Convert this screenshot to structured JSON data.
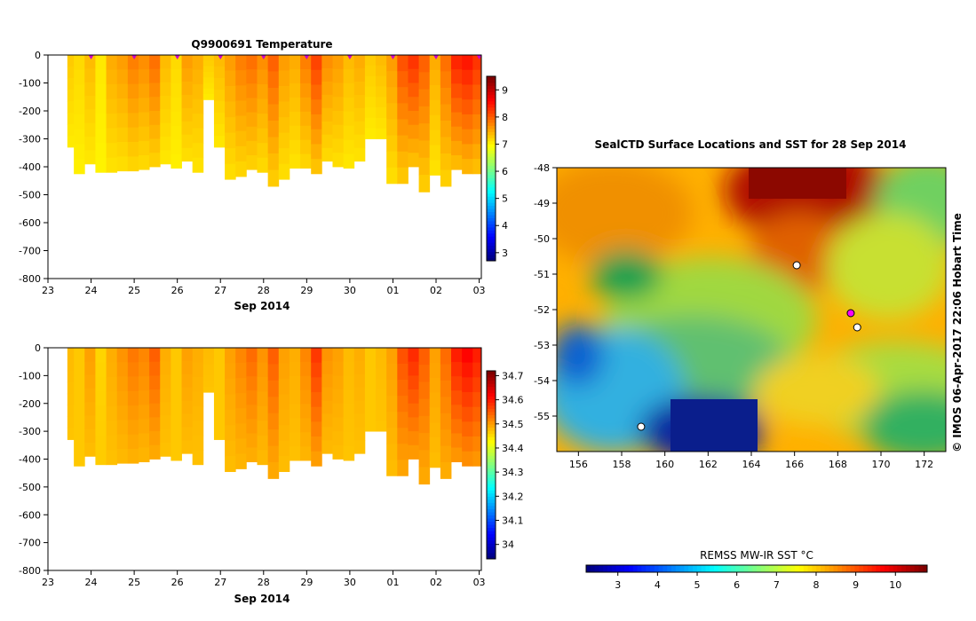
{
  "chart_data": [
    {
      "type": "heatmap",
      "title": "Q9900691  Temperature",
      "xlabel": "Sep 2014",
      "ylabel": "",
      "x_tick_labels": [
        "23",
        "24",
        "25",
        "26",
        "27",
        "28",
        "29",
        "30",
        "01",
        "02",
        "03"
      ],
      "xlim": [
        23,
        33.05
      ],
      "y_tick_labels": [
        "0",
        "-100",
        "-200",
        "-300",
        "-400",
        "-500",
        "-600",
        "-700",
        "-800"
      ],
      "y_ticks": [
        0,
        -100,
        -200,
        -300,
        -400,
        -500,
        -600,
        -700,
        -800
      ],
      "ylim": [
        -800,
        0
      ],
      "colorbar_ticks": [
        3,
        4,
        5,
        6,
        7,
        8,
        9
      ],
      "colorbar_range": [
        2.7,
        9.5
      ],
      "profile_start_times": [
        23.45,
        23.6,
        23.85,
        24.1,
        24.35,
        24.6,
        24.85,
        25.1,
        25.35,
        25.6,
        25.85,
        26.1,
        26.35,
        26.6,
        26.85,
        27.1,
        27.35,
        27.6,
        27.85,
        28.1,
        28.35,
        28.6,
        28.85,
        29.1,
        29.35,
        29.6,
        29.85,
        30.1,
        30.35,
        30.6,
        30.85,
        31.1,
        31.35,
        31.6,
        31.85,
        32.1,
        32.35,
        32.6,
        32.85
      ],
      "profile_max_depth": [
        -330,
        -425,
        -390,
        -420,
        -420,
        -415,
        -415,
        -410,
        -400,
        -390,
        -405,
        -380,
        -420,
        -160,
        -330,
        -445,
        -435,
        -410,
        -420,
        -470,
        -445,
        -405,
        -405,
        -425,
        -380,
        -400,
        -405,
        -380,
        -300,
        -300,
        -460,
        -460,
        -400,
        -490,
        -430,
        -470,
        -410,
        -425,
        -425
      ],
      "profile_surface_values": [
        7.3,
        7.2,
        7.4,
        7.1,
        7.5,
        7.6,
        7.8,
        7.7,
        7.9,
        7.4,
        7.2,
        7.6,
        7.5,
        7.3,
        7.4,
        7.6,
        7.8,
        7.9,
        7.7,
        8.0,
        7.6,
        7.5,
        7.8,
        8.2,
        7.7,
        7.6,
        7.4,
        7.5,
        7.3,
        7.4,
        7.6,
        8.1,
        8.3,
        8.0,
        7.5,
        7.9,
        8.4,
        8.5,
        8.3
      ],
      "surface_markers_x": [
        24,
        25,
        26,
        27,
        28,
        29,
        30,
        31,
        32,
        33
      ]
    },
    {
      "type": "heatmap",
      "title": "",
      "xlabel": "Sep 2014",
      "ylabel": "",
      "x_tick_labels": [
        "23",
        "24",
        "25",
        "26",
        "27",
        "28",
        "29",
        "30",
        "01",
        "02",
        "03"
      ],
      "xlim": [
        23,
        33.05
      ],
      "y_tick_labels": [
        "0",
        "-100",
        "-200",
        "-300",
        "-400",
        "-500",
        "-600",
        "-700",
        "-800"
      ],
      "y_ticks": [
        0,
        -100,
        -200,
        -300,
        -400,
        -500,
        -600,
        -700,
        -800
      ],
      "ylim": [
        -800,
        0
      ],
      "colorbar_ticks": [
        34,
        34.1,
        34.2,
        34.3,
        34.4,
        34.5,
        34.6,
        34.7
      ],
      "colorbar_tick_labels": [
        "34",
        "34.1",
        "34.2",
        "34.3",
        "34.4",
        "34.5",
        "34.6",
        "34.7"
      ],
      "colorbar_range": [
        33.94,
        34.72
      ],
      "profile_surface_values": [
        34.48,
        34.47,
        34.5,
        34.46,
        34.49,
        34.51,
        34.53,
        34.52,
        34.55,
        34.49,
        34.47,
        34.5,
        34.49,
        34.48,
        34.47,
        34.5,
        34.52,
        34.54,
        34.51,
        34.55,
        34.5,
        34.49,
        34.52,
        34.58,
        34.51,
        34.5,
        34.48,
        34.49,
        34.47,
        34.48,
        34.5,
        34.56,
        34.59,
        34.55,
        34.5,
        34.54,
        34.6,
        34.62,
        34.6
      ]
    },
    {
      "type": "heatmap",
      "title": "SealCTD Surface Locations and SST for 28 Sep 2014",
      "xlabel": "",
      "ylabel": "",
      "x_tick_labels": [
        "156",
        "158",
        "160",
        "162",
        "164",
        "166",
        "168",
        "170",
        "172"
      ],
      "x_ticks": [
        156,
        158,
        160,
        162,
        164,
        166,
        168,
        170,
        172
      ],
      "xlim": [
        155,
        173
      ],
      "y_tick_labels": [
        "-48",
        "-49",
        "-50",
        "-51",
        "-52",
        "-53",
        "-54",
        "-55"
      ],
      "y_ticks": [
        -48,
        -49,
        -50,
        -51,
        -52,
        -53,
        -54,
        -55
      ],
      "ylim": [
        -56,
        -48
      ],
      "colorbar_label": "REMSS MW-IR SST °C",
      "colorbar_ticks": [
        3,
        4,
        5,
        6,
        7,
        8,
        9,
        10
      ],
      "colorbar_range": [
        2.2,
        10.8
      ],
      "seal_track_lon": [
        158.9,
        166.1,
        168.6,
        168.9
      ],
      "seal_track_lat": [
        -55.3,
        -50.75,
        -52.1,
        -52.5
      ]
    }
  ],
  "credit": "© IMOS 06-Apr-2017 22:06 Hobart Time",
  "colors": {
    "cmap": [
      "#00007f",
      "#0000ff",
      "#0080ff",
      "#00ffff",
      "#80ff80",
      "#ffff00",
      "#ff8000",
      "#ff0000",
      "#7f0000"
    ],
    "surface_marker": "#cc00cc",
    "track_marker": "#ff00ff",
    "cold_water": "#001a8c"
  }
}
